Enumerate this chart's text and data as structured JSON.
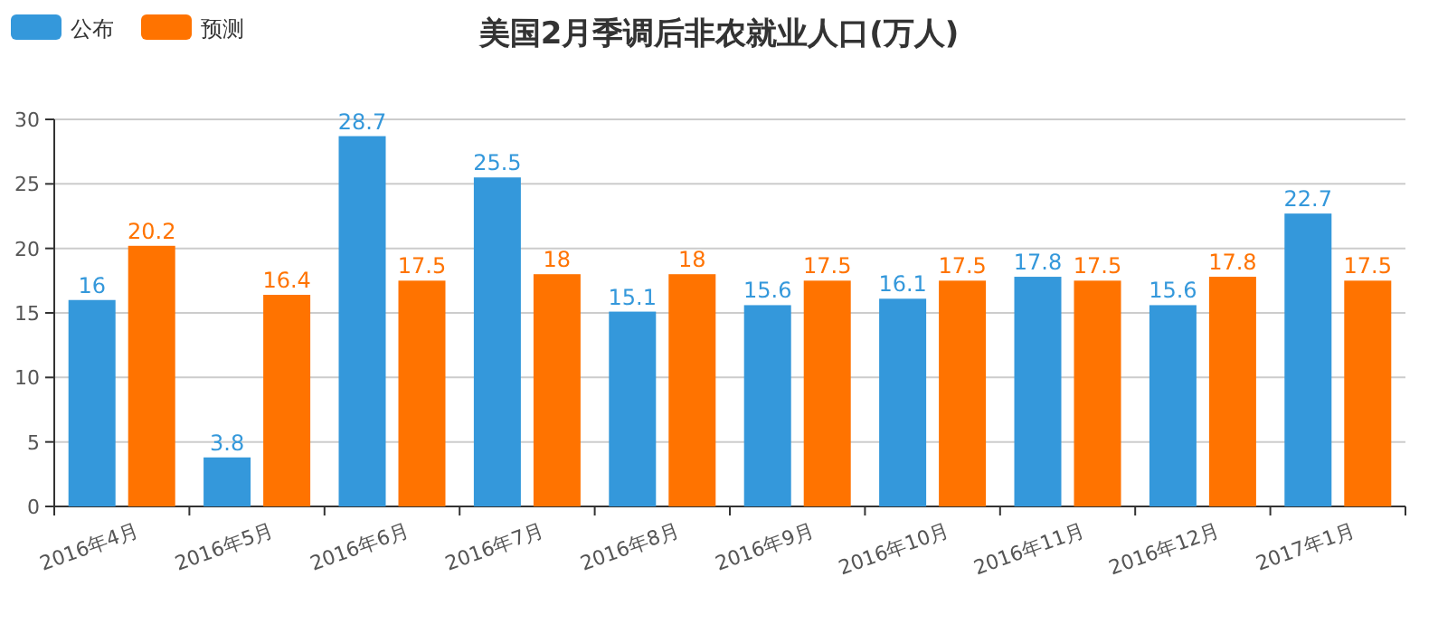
{
  "chart_data": {
    "type": "bar",
    "title": "美国2月季调后非农就业人口(万人)",
    "categories": [
      "2016年4月",
      "2016年5月",
      "2016年6月",
      "2016年7月",
      "2016年8月",
      "2016年9月",
      "2016年10月",
      "2016年11月",
      "2016年12月",
      "2017年1月"
    ],
    "series": [
      {
        "name": "公布",
        "color": "#3498db",
        "values": [
          16,
          3.8,
          28.7,
          25.5,
          15.1,
          15.6,
          16.1,
          17.8,
          15.6,
          22.7
        ]
      },
      {
        "name": "预测",
        "color": "#ff7300",
        "values": [
          20.2,
          16.4,
          17.5,
          18,
          18,
          17.5,
          17.5,
          17.5,
          17.8,
          17.5
        ]
      }
    ],
    "ylim": [
      0,
      30
    ],
    "yticks": [
      0,
      5,
      10,
      15,
      20,
      25,
      30
    ],
    "grid": "y",
    "legend": "top left",
    "data_labels": true
  }
}
